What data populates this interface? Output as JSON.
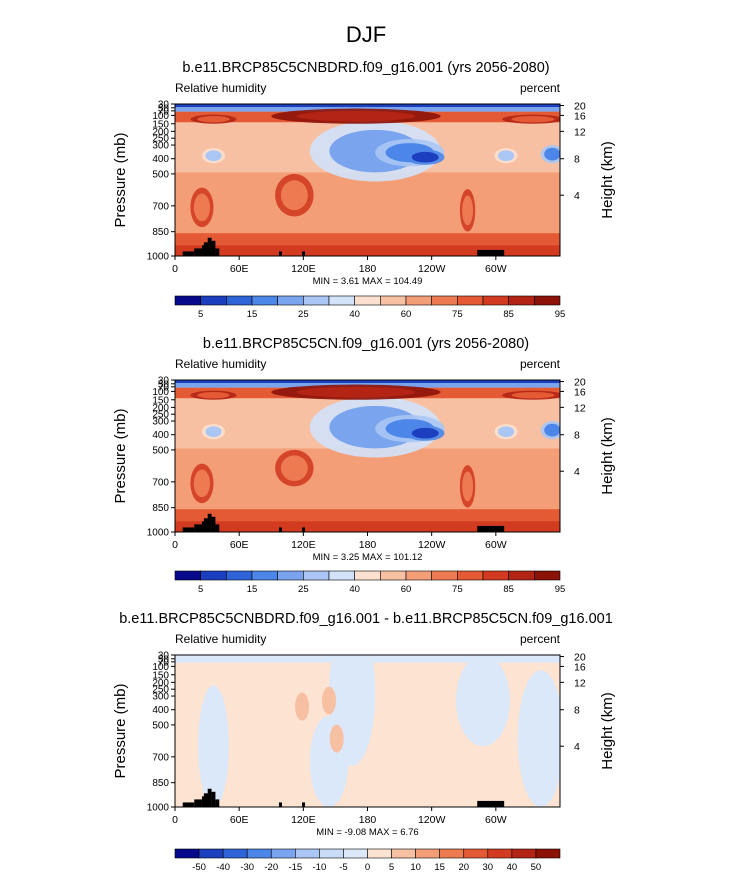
{
  "figure": {
    "title": "DJF"
  },
  "chart_data": [
    {
      "type": "heatmap",
      "title": "b.e11.BRCP85C5CNBDRD.f09_g16.001 (yrs 2056-2080)",
      "left_label": "Relative humidity",
      "right_label": "percent",
      "ylabel": "Pressure (mb)",
      "ylabel_right": "Height (km)",
      "x_ticks": [
        "0",
        "60E",
        "120E",
        "180",
        "120W",
        "60W"
      ],
      "y_ticks": [
        "30",
        "50",
        "70",
        "100",
        "150",
        "200",
        "250",
        "300",
        "400",
        "500",
        "700",
        "850",
        "1000"
      ],
      "height_ticks": [
        "20",
        "16",
        "12",
        "8",
        "4"
      ],
      "stats": "MIN =   3.61   MAX = 104.49",
      "colorbar_labels": [
        "5",
        "15",
        "25",
        "40",
        "60",
        "75",
        "85",
        "95"
      ],
      "colorbar_colors": [
        "#07098d",
        "#1b3fbf",
        "#2f64d9",
        "#4c86e8",
        "#7aa5ee",
        "#a9c6f4",
        "#d1e2f9",
        "#fbe0cf",
        "#f8c0a3",
        "#f49e78",
        "#ee7a52",
        "#e45a35",
        "#d23b20",
        "#b42414",
        "#8c1208"
      ],
      "blobs": [
        {
          "x": 0.52,
          "y": 0.31,
          "rx": 0.17,
          "ry": 0.2,
          "level": 4
        },
        {
          "x": 0.61,
          "y": 0.32,
          "rx": 0.09,
          "ry": 0.09,
          "level": 3
        },
        {
          "x": 0.65,
          "y": 0.35,
          "rx": 0.05,
          "ry": 0.05,
          "level": 1
        },
        {
          "x": 0.1,
          "y": 0.34,
          "rx": 0.03,
          "ry": 0.05,
          "level": 5
        },
        {
          "x": 0.86,
          "y": 0.34,
          "rx": 0.03,
          "ry": 0.05,
          "level": 5
        },
        {
          "x": 0.98,
          "y": 0.33,
          "rx": 0.03,
          "ry": 0.06,
          "level": 3
        },
        {
          "x": 0.31,
          "y": 0.6,
          "rx": 0.05,
          "ry": 0.14,
          "level": 10
        },
        {
          "x": 0.07,
          "y": 0.68,
          "rx": 0.03,
          "ry": 0.13,
          "level": 10
        },
        {
          "x": 0.76,
          "y": 0.7,
          "rx": 0.02,
          "ry": 0.14,
          "level": 10
        },
        {
          "x": 0.47,
          "y": 0.08,
          "rx": 0.22,
          "ry": 0.05,
          "level": 13
        },
        {
          "x": 0.1,
          "y": 0.1,
          "rx": 0.06,
          "ry": 0.03,
          "level": 11
        },
        {
          "x": 0.93,
          "y": 0.1,
          "rx": 0.08,
          "ry": 0.03,
          "level": 11
        }
      ]
    },
    {
      "type": "heatmap",
      "title": "b.e11.BRCP85C5CN.f09_g16.001 (yrs 2056-2080)",
      "left_label": "Relative humidity",
      "right_label": "percent",
      "ylabel": "Pressure (mb)",
      "ylabel_right": "Height (km)",
      "x_ticks": [
        "0",
        "60E",
        "120E",
        "180",
        "120W",
        "60W"
      ],
      "y_ticks": [
        "30",
        "50",
        "70",
        "100",
        "150",
        "200",
        "250",
        "300",
        "400",
        "500",
        "700",
        "850",
        "1000"
      ],
      "height_ticks": [
        "20",
        "16",
        "12",
        "8",
        "4"
      ],
      "stats": "MIN =   3.25   MAX = 101.12",
      "colorbar_labels": [
        "5",
        "15",
        "25",
        "40",
        "60",
        "75",
        "85",
        "95"
      ],
      "colorbar_colors": [
        "#07098d",
        "#1b3fbf",
        "#2f64d9",
        "#4c86e8",
        "#7aa5ee",
        "#a9c6f4",
        "#d1e2f9",
        "#fbe0cf",
        "#f8c0a3",
        "#f49e78",
        "#ee7a52",
        "#e45a35",
        "#d23b20",
        "#b42414",
        "#8c1208"
      ],
      "blobs": [
        {
          "x": 0.52,
          "y": 0.31,
          "rx": 0.17,
          "ry": 0.2,
          "level": 4
        },
        {
          "x": 0.61,
          "y": 0.32,
          "rx": 0.09,
          "ry": 0.09,
          "level": 3
        },
        {
          "x": 0.65,
          "y": 0.35,
          "rx": 0.05,
          "ry": 0.05,
          "level": 1
        },
        {
          "x": 0.1,
          "y": 0.34,
          "rx": 0.03,
          "ry": 0.05,
          "level": 5
        },
        {
          "x": 0.86,
          "y": 0.34,
          "rx": 0.03,
          "ry": 0.05,
          "level": 5
        },
        {
          "x": 0.98,
          "y": 0.33,
          "rx": 0.03,
          "ry": 0.06,
          "level": 3
        },
        {
          "x": 0.31,
          "y": 0.58,
          "rx": 0.05,
          "ry": 0.12,
          "level": 10
        },
        {
          "x": 0.07,
          "y": 0.68,
          "rx": 0.03,
          "ry": 0.13,
          "level": 10
        },
        {
          "x": 0.76,
          "y": 0.7,
          "rx": 0.02,
          "ry": 0.14,
          "level": 10
        },
        {
          "x": 0.47,
          "y": 0.08,
          "rx": 0.22,
          "ry": 0.05,
          "level": 13
        },
        {
          "x": 0.1,
          "y": 0.1,
          "rx": 0.06,
          "ry": 0.03,
          "level": 11
        },
        {
          "x": 0.93,
          "y": 0.1,
          "rx": 0.08,
          "ry": 0.03,
          "level": 11
        }
      ]
    },
    {
      "type": "heatmap",
      "title": "b.e11.BRCP85C5CNBDRD.f09_g16.001 - b.e11.BRCP85C5CN.f09_g16.001",
      "left_label": "Relative humidity",
      "right_label": "percent",
      "ylabel": "Pressure (mb)",
      "ylabel_right": "Height (km)",
      "x_ticks": [
        "0",
        "60E",
        "120E",
        "180",
        "120W",
        "60W"
      ],
      "y_ticks": [
        "30",
        "50",
        "70",
        "100",
        "150",
        "200",
        "250",
        "300",
        "400",
        "500",
        "700",
        "850",
        "1000"
      ],
      "height_ticks": [
        "20",
        "16",
        "12",
        "8",
        "4"
      ],
      "stats": "MIN =  -9.08   MAX =   6.76",
      "colorbar_labels": [
        "-50",
        "-40",
        "-30",
        "-20",
        "-15",
        "-10",
        "-5",
        "0",
        "5",
        "10",
        "15",
        "20",
        "30",
        "40",
        "50"
      ],
      "colorbar_colors": [
        "#07098d",
        "#1b3fbf",
        "#2f64d9",
        "#4c86e8",
        "#7aa5ee",
        "#a9c6f4",
        "#c8dcf7",
        "#dbe8fa",
        "#fde3d2",
        "#f8c0a3",
        "#f49e78",
        "#ee7a52",
        "#e45a35",
        "#d23b20",
        "#b42414",
        "#8c1208"
      ],
      "diff_bands": [
        {
          "x": 0.46,
          "y": 0.25,
          "rx": 0.06,
          "ry": 0.48,
          "level": 7
        },
        {
          "x": 0.8,
          "y": 0.3,
          "rx": 0.07,
          "ry": 0.3,
          "level": 7
        },
        {
          "x": 0.95,
          "y": 0.55,
          "rx": 0.06,
          "ry": 0.45,
          "level": 7
        },
        {
          "x": 0.1,
          "y": 0.6,
          "rx": 0.04,
          "ry": 0.4,
          "level": 7
        },
        {
          "x": 0.4,
          "y": 0.7,
          "rx": 0.05,
          "ry": 0.3,
          "level": 7
        }
      ]
    }
  ]
}
